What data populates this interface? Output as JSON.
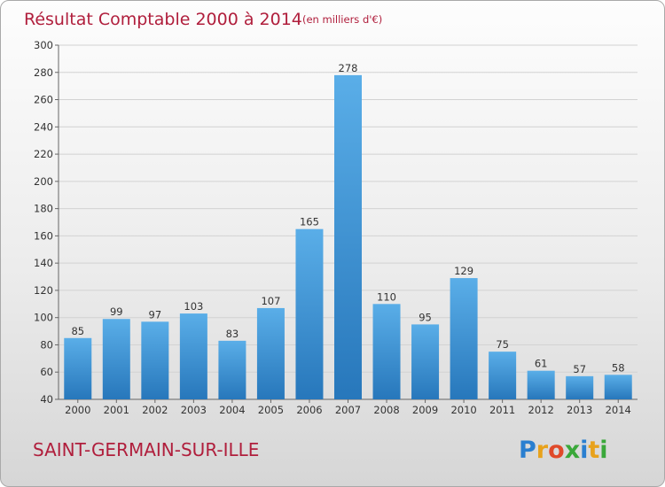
{
  "chart_data": {
    "type": "bar",
    "title": "Résultat Comptable 2000 à 2014",
    "subtitle": "(en milliers d'€)",
    "categories": [
      "2000",
      "2001",
      "2002",
      "2003",
      "2004",
      "2005",
      "2006",
      "2007",
      "2008",
      "2009",
      "2010",
      "2011",
      "2012",
      "2013",
      "2014"
    ],
    "values": [
      85,
      99,
      97,
      103,
      83,
      107,
      165,
      278,
      110,
      95,
      129,
      75,
      61,
      57,
      58
    ],
    "ylim": [
      40,
      300
    ],
    "yticks": [
      40,
      60,
      80,
      100,
      120,
      140,
      160,
      180,
      200,
      220,
      240,
      260,
      280,
      300
    ],
    "grid": true,
    "xlabel": "",
    "ylabel": ""
  },
  "commune": "SAINT-GERMAIN-SUR-ILLE",
  "logo": {
    "text": "Proxiti",
    "letters": [
      "P",
      "r",
      "o",
      "x",
      "i",
      "t",
      "i"
    ],
    "colors": [
      "#2a7fd0",
      "#e8a21c",
      "#e04a2a",
      "#3aa83a",
      "#2a7fd0",
      "#e8a21c",
      "#3aa83a"
    ]
  },
  "colors": {
    "title": "#b01e3c",
    "bar_light": "#5aaee8",
    "bar_dark": "#2777bb",
    "grid": "#d2d2d2"
  }
}
